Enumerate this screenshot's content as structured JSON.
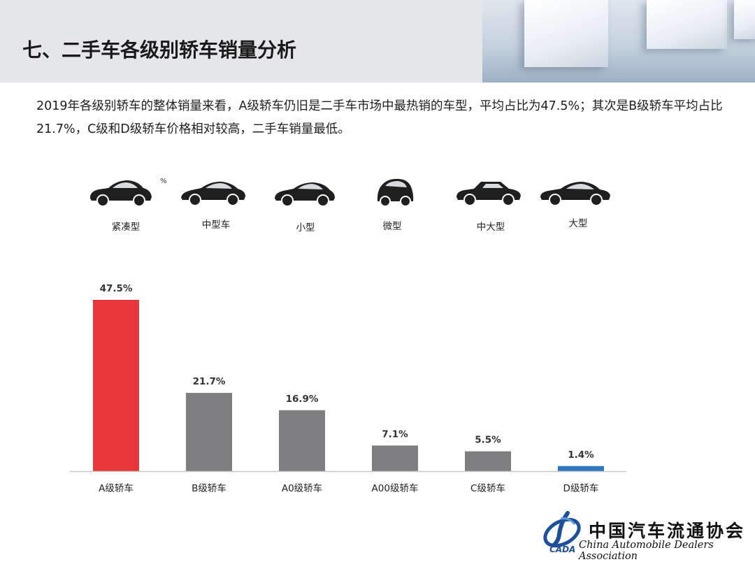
{
  "title": "七、二手车各级别轿车销量分析",
  "intro": "2019年各级别轿车的整体销量来看，A级轿车仍旧是二手车市场中最热销的车型，平均占比为47.5%；其次是B级轿车平均占比21.7%，C级和D级轿车价格相对较高，二手车销量最低。",
  "car_types": [
    "紧凑型",
    "中型车",
    "小型",
    "微型",
    "中大型",
    "大型"
  ],
  "stray_mark": "%",
  "chart_data": {
    "type": "bar",
    "categories": [
      "A级轿车",
      "B级轿车",
      "A0级轿车",
      "A00级轿车",
      "C级轿车",
      "D级轿车"
    ],
    "values": [
      47.5,
      21.7,
      16.9,
      7.1,
      5.5,
      1.4
    ],
    "value_labels": [
      "47.5%",
      "21.7%",
      "16.9%",
      "7.1%",
      "5.5%",
      "1.4%"
    ],
    "colors": [
      "#e8363a",
      "#7e7d80",
      "#7e7d80",
      "#7e7d80",
      "#7e7d80",
      "#2f78bf"
    ],
    "unit": "%",
    "ylim": [
      0,
      47.5
    ],
    "grid": false
  },
  "logo": {
    "name_cn": "中国汽车流通协会",
    "name_en": "China Automobile Dealers Association",
    "abbr": "CADA"
  }
}
